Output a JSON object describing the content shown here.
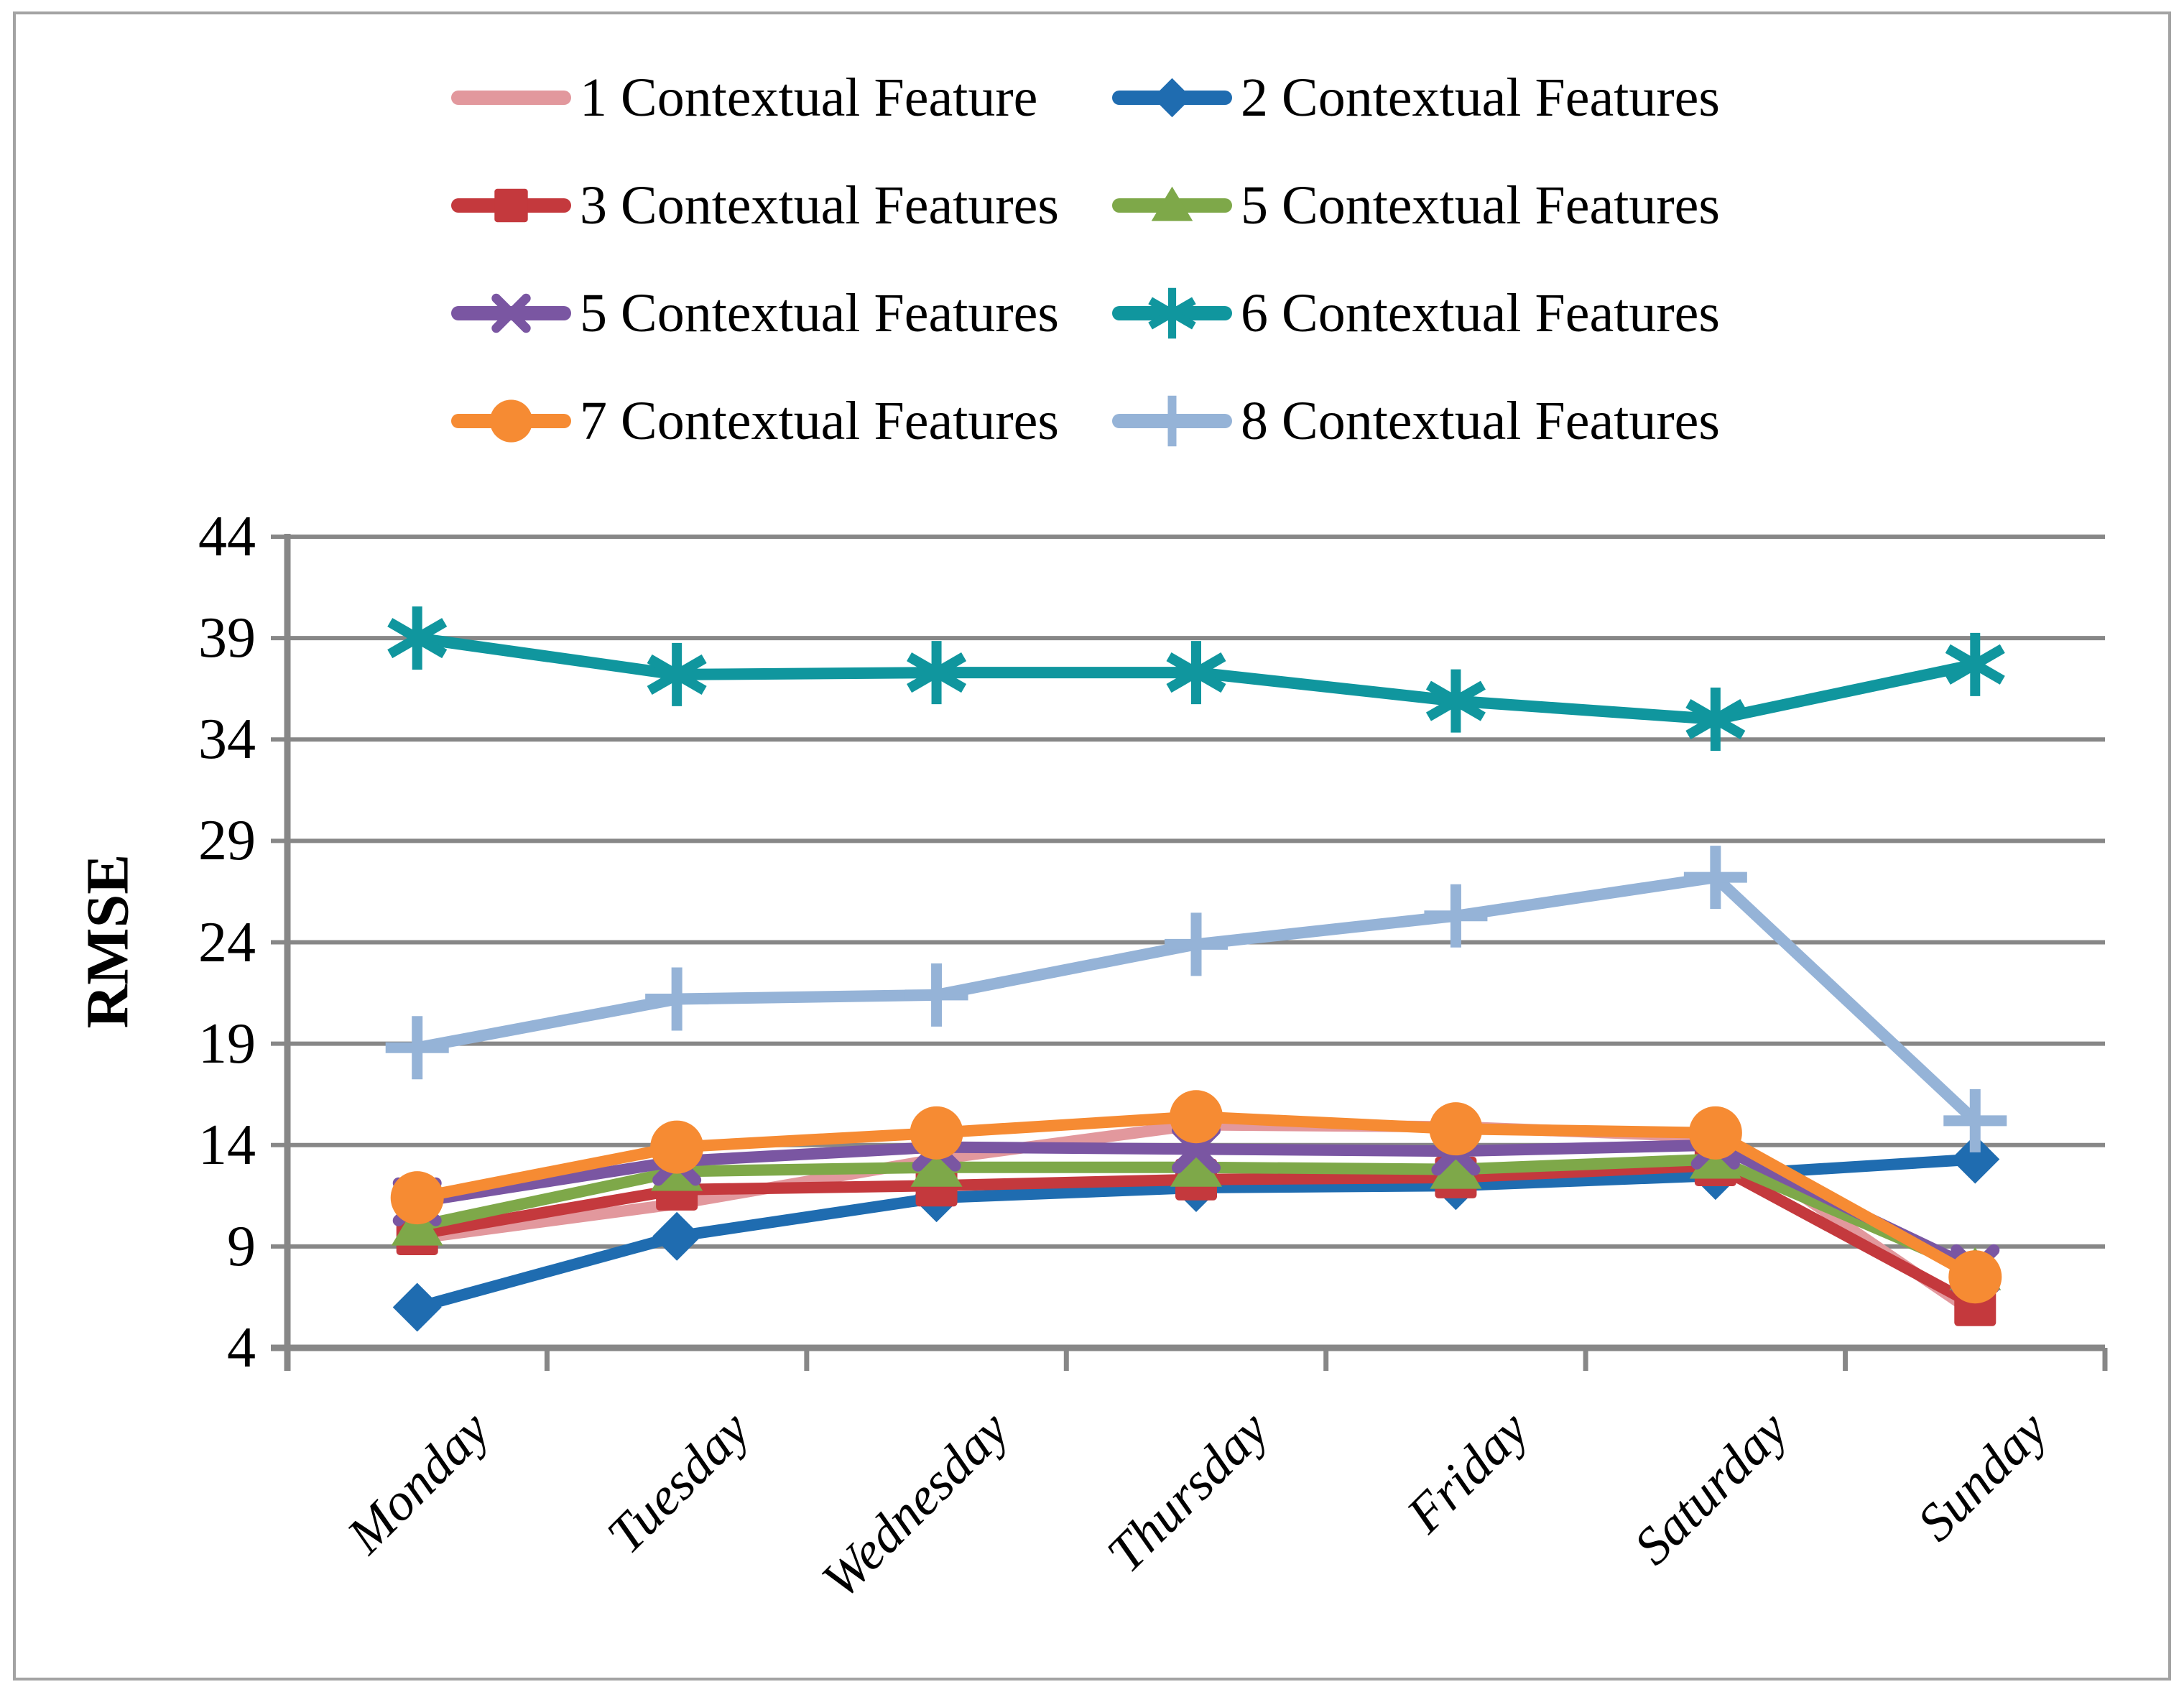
{
  "y_axis": {
    "title": "RMSE",
    "ticks": [
      "44",
      "39",
      "34",
      "29",
      "24",
      "19",
      "14",
      "9",
      "4"
    ]
  },
  "x_axis": {
    "labels": [
      "Monday",
      "Tuesday",
      "Wednesday",
      "Thursday",
      "Friday",
      "Saturday",
      "Sunday"
    ]
  },
  "colors": {
    "grid": "#878787",
    "axis": "#878787",
    "frame": "#a3a3a3"
  },
  "legend": {
    "items": [
      {
        "label": "1 Contextual Feature",
        "color": "#e2989d",
        "marker": "none",
        "col": 0,
        "row": 0
      },
      {
        "label": "2 Contextual Features",
        "color": "#1f6cb0",
        "marker": "diamond",
        "col": 1,
        "row": 0
      },
      {
        "label": "3 Contextual Features",
        "color": "#c4393d",
        "marker": "square",
        "col": 0,
        "row": 1
      },
      {
        "label": "5 Contextual Features",
        "color": "#7ea849",
        "marker": "triangle",
        "col": 1,
        "row": 1
      },
      {
        "label": "5 Contextual Features",
        "color": "#7a56a2",
        "marker": "x",
        "col": 0,
        "row": 2
      },
      {
        "label": "6 Contextual Features",
        "color": "#10969e",
        "marker": "asterisk",
        "col": 1,
        "row": 2
      },
      {
        "label": "7 Contextual Features",
        "color": "#f68b33",
        "marker": "circle",
        "col": 0,
        "row": 3
      },
      {
        "label": "8 Contextual Features",
        "color": "#95b3d7",
        "marker": "plus",
        "col": 1,
        "row": 3
      }
    ]
  },
  "chart_data": {
    "type": "line",
    "categories": [
      "Monday",
      "Tuesday",
      "Wednesday",
      "Thursday",
      "Friday",
      "Saturday",
      "Sunday"
    ],
    "series": [
      {
        "name": "1 Contextual Feature",
        "color": "#e2989d",
        "marker": "none",
        "values": [
          9.4,
          11.1,
          13.3,
          15.0,
          14.9,
          14.4,
          5.7
        ]
      },
      {
        "name": "2 Contextual Features",
        "color": "#1f6cb0",
        "marker": "diamond",
        "values": [
          6.0,
          9.5,
          11.4,
          11.9,
          12.0,
          12.5,
          13.3
        ]
      },
      {
        "name": "3 Contextual Features",
        "color": "#c4393d",
        "marker": "square",
        "values": [
          9.6,
          11.8,
          12.0,
          12.3,
          12.4,
          13.0,
          6.1
        ]
      },
      {
        "name": "5 Contextual Features",
        "color": "#7ea849",
        "marker": "triangle",
        "values": [
          10.0,
          12.7,
          12.9,
          12.9,
          12.8,
          13.3,
          7.8
        ]
      },
      {
        "name": "5 Contextual Features",
        "color": "#7a56a2",
        "marker": "x",
        "values": [
          11.2,
          13.2,
          13.9,
          13.8,
          13.7,
          14.0,
          7.9
        ]
      },
      {
        "name": "6 Contextual Features",
        "color": "#10969e",
        "marker": "asterisk",
        "values": [
          39.0,
          37.2,
          37.3,
          37.3,
          35.9,
          35.0,
          37.7
        ]
      },
      {
        "name": "7 Contextual Features",
        "color": "#f68b33",
        "marker": "circle",
        "values": [
          11.4,
          13.9,
          14.6,
          15.4,
          14.8,
          14.6,
          7.5
        ]
      },
      {
        "name": "8 Contextual Features",
        "color": "#95b3d7",
        "marker": "plus",
        "values": [
          18.8,
          21.2,
          21.4,
          23.9,
          25.3,
          27.2,
          15.2
        ]
      }
    ],
    "title": "",
    "xlabel": "",
    "ylabel": "RMSE",
    "ylim": [
      4,
      44
    ],
    "ytick_step": 5,
    "grid": true,
    "legend_position": "top"
  }
}
